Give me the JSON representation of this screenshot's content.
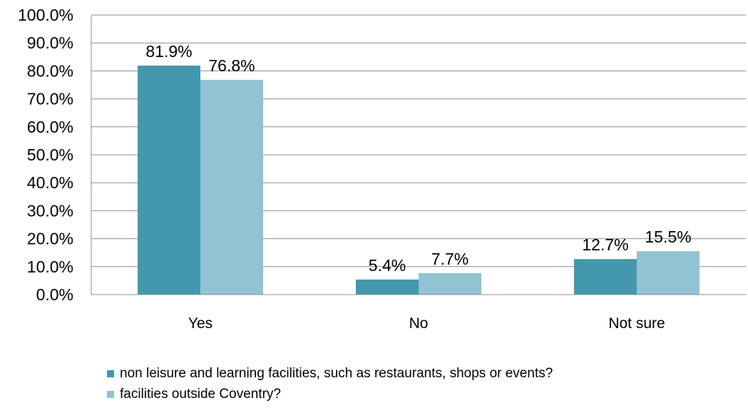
{
  "chart_data": {
    "type": "bar",
    "categories": [
      "Yes",
      "No",
      "Not sure"
    ],
    "series": [
      {
        "name": "non leisure and learning facilities, such as restaurants, shops or events?",
        "values": [
          81.9,
          5.4,
          12.7
        ],
        "labels": [
          "81.9%",
          "5.4%",
          "12.7%"
        ],
        "color": "#4398ad"
      },
      {
        "name": "facilities outside Coventry?",
        "values": [
          76.8,
          7.7,
          15.5
        ],
        "labels": [
          "76.8%",
          "7.7%",
          "15.5%"
        ],
        "color": "#93c3d3"
      }
    ],
    "ylim": [
      0,
      100
    ],
    "yticks": [
      "0.0%",
      "10.0%",
      "20.0%",
      "30.0%",
      "40.0%",
      "50.0%",
      "60.0%",
      "70.0%",
      "80.0%",
      "90.0%",
      "100.0%"
    ],
    "grid": true,
    "legend_position": "bottom-left"
  }
}
